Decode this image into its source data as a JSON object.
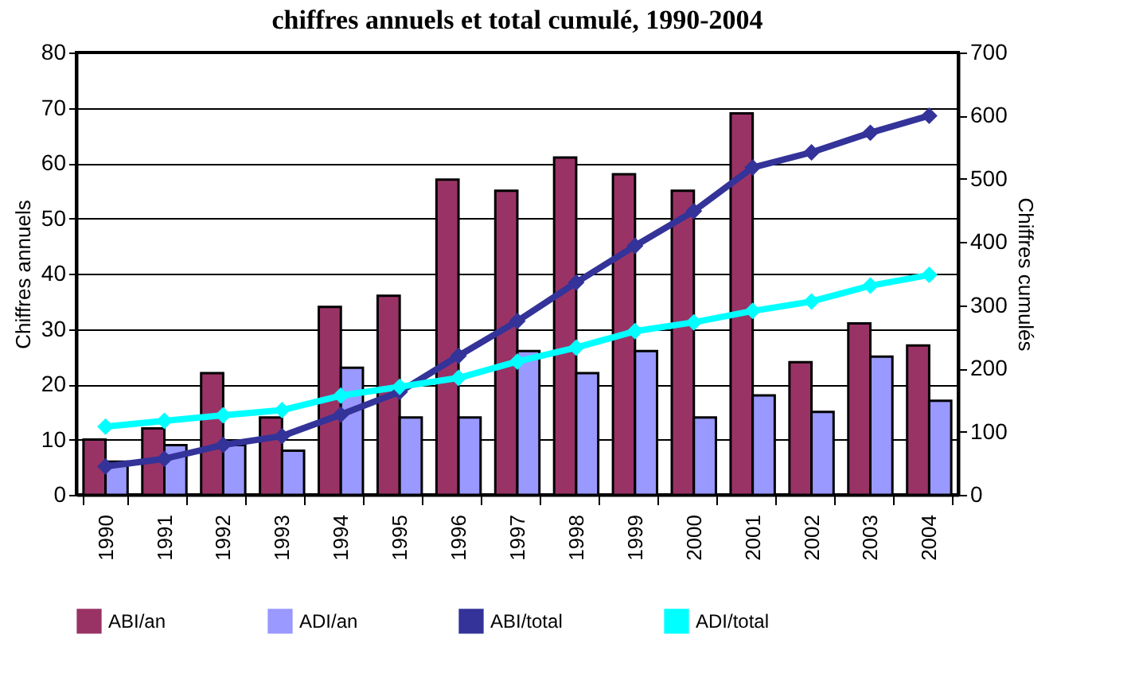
{
  "chart_data": {
    "type": "bar",
    "title": "chiffres annuels et total cumulé, 1990-2004",
    "ylabel": "Chiffres annuels",
    "y2label": "Chiffres cumulés",
    "categories": [
      "1990",
      "1991",
      "1992",
      "1993",
      "1994",
      "1995",
      "1996",
      "1997",
      "1998",
      "1999",
      "2000",
      "2001",
      "2002",
      "2003",
      "2004"
    ],
    "series": [
      {
        "name": "ABI/an",
        "color": "#993366",
        "values": [
          10,
          12,
          22,
          14,
          34,
          36,
          57,
          55,
          61,
          58,
          55,
          69,
          24,
          31,
          27
        ]
      },
      {
        "name": "ADI/an",
        "color": "#9999ff",
        "values": [
          6,
          9,
          9,
          8,
          23,
          14,
          14,
          26,
          22,
          26,
          14,
          18,
          15,
          25,
          17
        ]
      },
      {
        "name": "ABI/total",
        "type": "line",
        "axis": "y2",
        "color": "#333399",
        "values": [
          45,
          57,
          79,
          93,
          127,
          163,
          220,
          275,
          336,
          394,
          449,
          518,
          542,
          573,
          600
        ]
      },
      {
        "name": "ADI/total",
        "type": "line",
        "axis": "y2",
        "color": "#00ffff",
        "values": [
          108,
          117,
          126,
          134,
          157,
          171,
          185,
          211,
          233,
          259,
          273,
          291,
          306,
          331,
          348
        ]
      }
    ],
    "ylim": [
      0,
      80
    ],
    "yticks": [
      0,
      10,
      20,
      30,
      40,
      50,
      60,
      70,
      80
    ],
    "y2lim": [
      0,
      700
    ],
    "y2ticks": [
      0,
      100,
      200,
      300,
      400,
      500,
      600,
      700
    ],
    "grid": "y",
    "legend": "bottom",
    "marker": "diamond",
    "line_style": "solid"
  }
}
